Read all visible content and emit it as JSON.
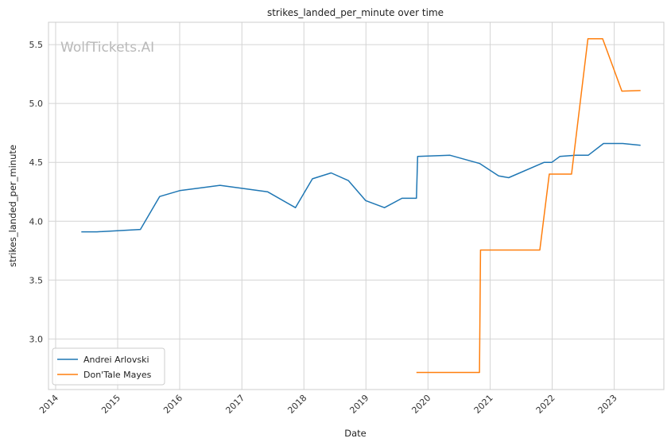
{
  "chart_data": {
    "type": "line",
    "title": "strikes_landed_per_minute over time",
    "xlabel": "Date",
    "ylabel": "strikes_landed_per_minute",
    "watermark": "WolfTickets.AI",
    "x_axis_type": "date",
    "xlim": [
      "2013-11-20",
      "2023-10-20"
    ],
    "ylim": [
      2.57,
      5.69
    ],
    "x_ticks": [
      "2014",
      "2015",
      "2016",
      "2017",
      "2018",
      "2019",
      "2020",
      "2021",
      "2022",
      "2023"
    ],
    "y_ticks": [
      3.0,
      3.5,
      4.0,
      4.5,
      5.0,
      5.5
    ],
    "y_tick_labels": [
      "3.0",
      "3.5",
      "4.0",
      "4.5",
      "5.0",
      "5.5"
    ],
    "grid": true,
    "legend_position": "bottom-left",
    "series": [
      {
        "name": "Andrei Arlovski",
        "color": "#1f77b4",
        "points": [
          [
            "2014-06-01",
            3.91
          ],
          [
            "2014-09-01",
            3.91
          ],
          [
            "2015-05-15",
            3.93
          ],
          [
            "2015-09-05",
            4.21
          ],
          [
            "2016-01-01",
            4.26
          ],
          [
            "2016-05-15",
            4.285
          ],
          [
            "2016-08-25",
            4.305
          ],
          [
            "2017-06-01",
            4.25
          ],
          [
            "2017-11-12",
            4.115
          ],
          [
            "2018-02-20",
            4.36
          ],
          [
            "2018-06-10",
            4.41
          ],
          [
            "2018-09-20",
            4.345
          ],
          [
            "2018-12-30",
            4.175
          ],
          [
            "2019-04-20",
            4.115
          ],
          [
            "2019-08-01",
            4.195
          ],
          [
            "2019-10-25",
            4.195
          ],
          [
            "2019-11-01",
            4.55
          ],
          [
            "2020-05-10",
            4.56
          ],
          [
            "2020-11-01",
            4.49
          ],
          [
            "2021-02-20",
            4.385
          ],
          [
            "2021-04-20",
            4.37
          ],
          [
            "2021-11-15",
            4.5
          ],
          [
            "2021-12-30",
            4.5
          ],
          [
            "2022-02-15",
            4.55
          ],
          [
            "2022-05-20",
            4.56
          ],
          [
            "2022-08-01",
            4.56
          ],
          [
            "2022-10-30",
            4.66
          ],
          [
            "2023-02-20",
            4.66
          ],
          [
            "2023-06-05",
            4.645
          ]
        ]
      },
      {
        "name": "Don'Tale Mayes",
        "color": "#ff7f0e",
        "points": [
          [
            "2019-10-25",
            2.715
          ],
          [
            "2020-10-30",
            2.715
          ],
          [
            "2020-11-05",
            3.755
          ],
          [
            "2021-10-20",
            3.755
          ],
          [
            "2021-12-15",
            4.4
          ],
          [
            "2022-04-25",
            4.4
          ],
          [
            "2022-07-30",
            5.55
          ],
          [
            "2022-10-25",
            5.55
          ],
          [
            "2023-02-15",
            5.105
          ],
          [
            "2023-06-05",
            5.11
          ]
        ]
      }
    ]
  }
}
